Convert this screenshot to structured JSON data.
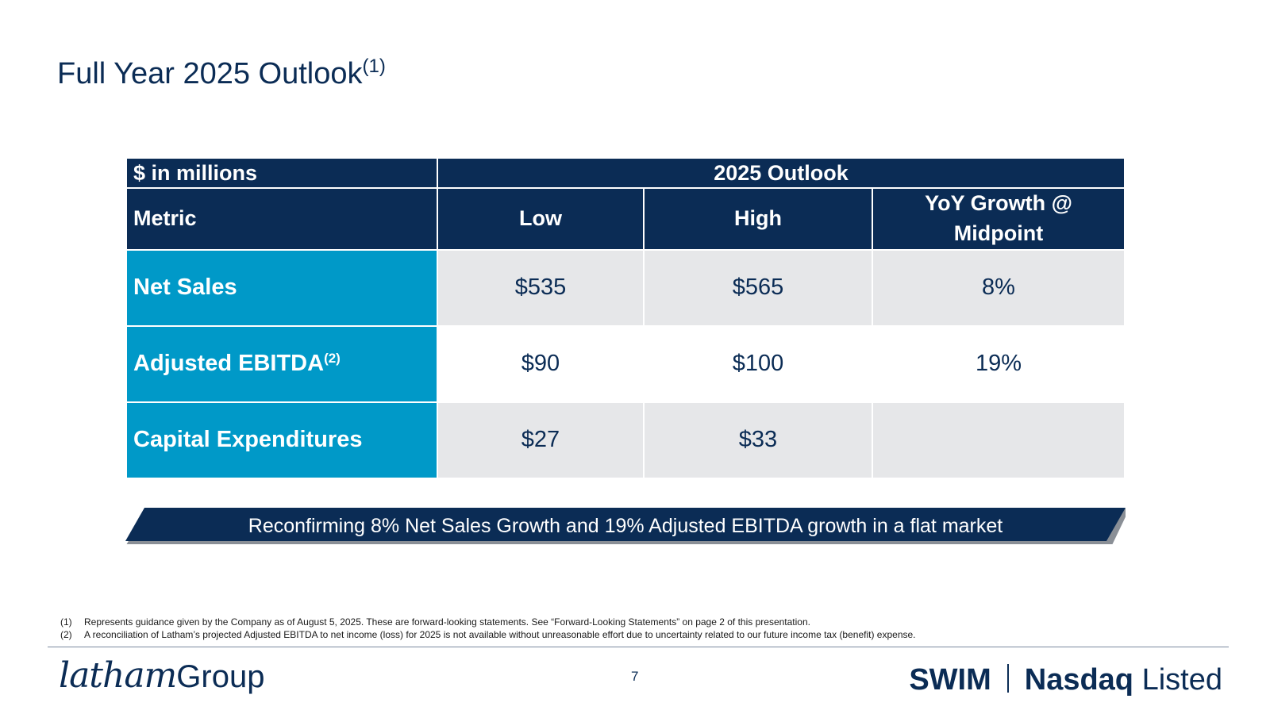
{
  "title": {
    "text": "Full Year 2025 Outlook",
    "sup": "(1)"
  },
  "table": {
    "unit_label": "$ in millions",
    "group_header": "2025 Outlook",
    "columns": {
      "metric": "Metric",
      "low": "Low",
      "high": "High",
      "yoy": "YoY Growth @ Midpoint"
    },
    "rows": [
      {
        "metric": "Net Sales",
        "sup": "",
        "low": "$535",
        "high": "$565",
        "yoy": "8%"
      },
      {
        "metric": "Adjusted EBITDA",
        "sup": "(2)",
        "low": "$90",
        "high": "$100",
        "yoy": "19%"
      },
      {
        "metric": "Capital Expenditures",
        "sup": "",
        "low": "$27",
        "high": "$33",
        "yoy": ""
      }
    ]
  },
  "banner": {
    "text": "Reconfirming 8% Net Sales Growth and 19% Adjusted EBITDA growth in a flat market"
  },
  "footnotes": [
    {
      "num": "(1)",
      "text": "Represents guidance given by the Company as of August 5, 2025. These are forward-looking statements. See “Forward-Looking Statements” on page 2 of this presentation."
    },
    {
      "num": "(2)",
      "text": "A reconciliation of Latham’s projected Adjusted EBITDA to net income (loss) for 2025 is not available without unreasonable effort due to uncertainty related to our future income tax (benefit) expense."
    }
  ],
  "footer": {
    "logo_script": "latham",
    "logo_group": "Group",
    "page_number": "7",
    "ticker": "SWIM",
    "exchange": "Nasdaq",
    "listed": "Listed"
  },
  "colors": {
    "navy": "#0b2c55",
    "teal": "#0099c8",
    "gray": "#e6e7e9"
  }
}
